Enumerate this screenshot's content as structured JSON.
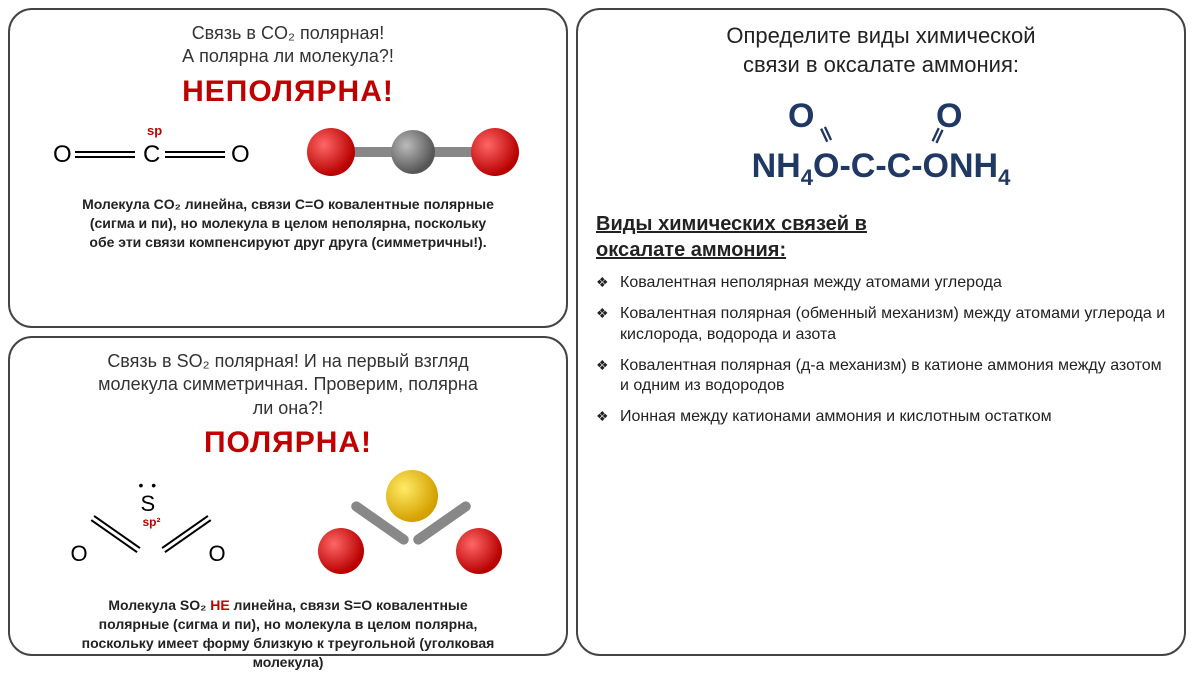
{
  "panel_tl": {
    "subtitle_l1": "Связь в CO₂ полярная!",
    "subtitle_l2": "А полярна ли молекула?!",
    "headline": "НЕПОЛЯРНА!",
    "sp_label": "sp",
    "atom_o": "O",
    "atom_c": "C",
    "desc_1": "Молекула CO₂ линейна, связи C=O ковалентные полярные",
    "desc_2": "(сигма и пи), но молекула в целом неполярна, поскольку",
    "desc_3": "обе эти связи компенсируют друг друга (симметричны!).",
    "colors": {
      "oxygen": "#c00000",
      "carbon": "#666666",
      "headline": "#c00000"
    }
  },
  "panel_bl": {
    "subtitle_l1": "Связь в SO₂ полярная! И на первый взгляд",
    "subtitle_l2": "молекула симметричная. Проверим, полярна",
    "subtitle_l3": "ли она?!",
    "headline": "ПОЛЯРНА!",
    "sp_label": "sp²",
    "atom_o": "O",
    "atom_s": "S",
    "desc_1a": "Молекула SO₂ ",
    "desc_1b": "НЕ",
    "desc_1c": " линейна, связи S=O ковалентные",
    "desc_2": "полярные (сигма и пи), но молекула в целом полярна,",
    "desc_3": "поскольку имеет форму близкую к треугольной (уголковая",
    "desc_4": "молекула)",
    "colors": {
      "oxygen": "#c00000",
      "sulfur": "#d4a000",
      "headline": "#c00000"
    }
  },
  "panel_r": {
    "title_l1": "Определите виды химической",
    "title_l2": "связи в оксалате аммония:",
    "formula_o": "O",
    "formula_line": "NH₄O-C-C-ONH₄",
    "formula_dbl": "‖",
    "section_l1": "Виды химических связей в",
    "section_l2": "оксалате аммония:",
    "bullets": [
      "Ковалентная неполярная между атомами углерода",
      "Ковалентная полярная (обменный механизм) между атомами углерода и кислорода, водорода и азота",
      "Ковалентная полярная (д-а механизм) в катионе аммония между азотом и одним из водородов",
      "Ионная между катионами аммония и кислотным остатком"
    ],
    "colors": {
      "formula": "#203864"
    }
  }
}
